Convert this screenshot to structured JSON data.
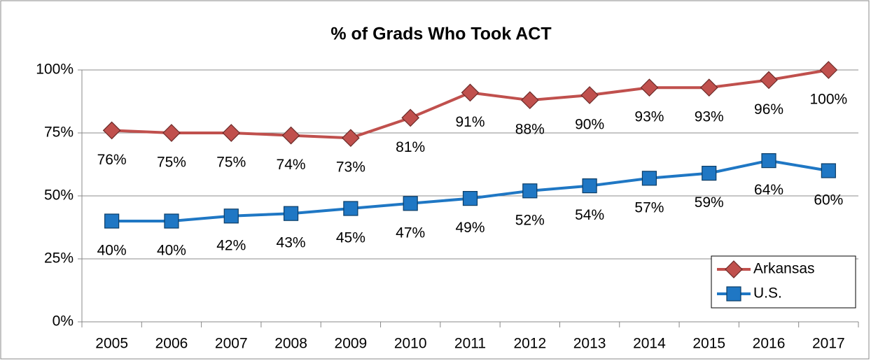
{
  "chart_data": {
    "type": "line",
    "title": "% of Grads Who Took ACT",
    "categories": [
      "2005",
      "2006",
      "2007",
      "2008",
      "2009",
      "2010",
      "2011",
      "2012",
      "2013",
      "2014",
      "2015",
      "2016",
      "2017"
    ],
    "series": [
      {
        "name": "Arkansas",
        "color": "#c0504d",
        "marker": "diamond",
        "values": [
          76,
          75,
          75,
          74,
          73,
          81,
          91,
          88,
          90,
          93,
          93,
          96,
          100
        ],
        "value_labels": [
          "76%",
          "75%",
          "75%",
          "74%",
          "73%",
          "81%",
          "91%",
          "88%",
          "90%",
          "93%",
          "93%",
          "96%",
          "100%"
        ]
      },
      {
        "name": "U.S.",
        "color": "#1f77c4",
        "marker": "square",
        "values": [
          40,
          40,
          42,
          43,
          45,
          47,
          49,
          52,
          54,
          57,
          59,
          64,
          60
        ],
        "value_labels": [
          "40%",
          "40%",
          "42%",
          "43%",
          "45%",
          "47%",
          "49%",
          "52%",
          "54%",
          "57%",
          "59%",
          "64%",
          "60%"
        ]
      }
    ],
    "ylim": [
      0,
      100
    ],
    "yticks": [
      {
        "value": 0,
        "label": "0%"
      },
      {
        "value": 25,
        "label": "25%"
      },
      {
        "value": 50,
        "label": "50%"
      },
      {
        "value": 75,
        "label": "75%"
      },
      {
        "value": 100,
        "label": "100%"
      }
    ],
    "grid": true,
    "legend": "lower right"
  }
}
